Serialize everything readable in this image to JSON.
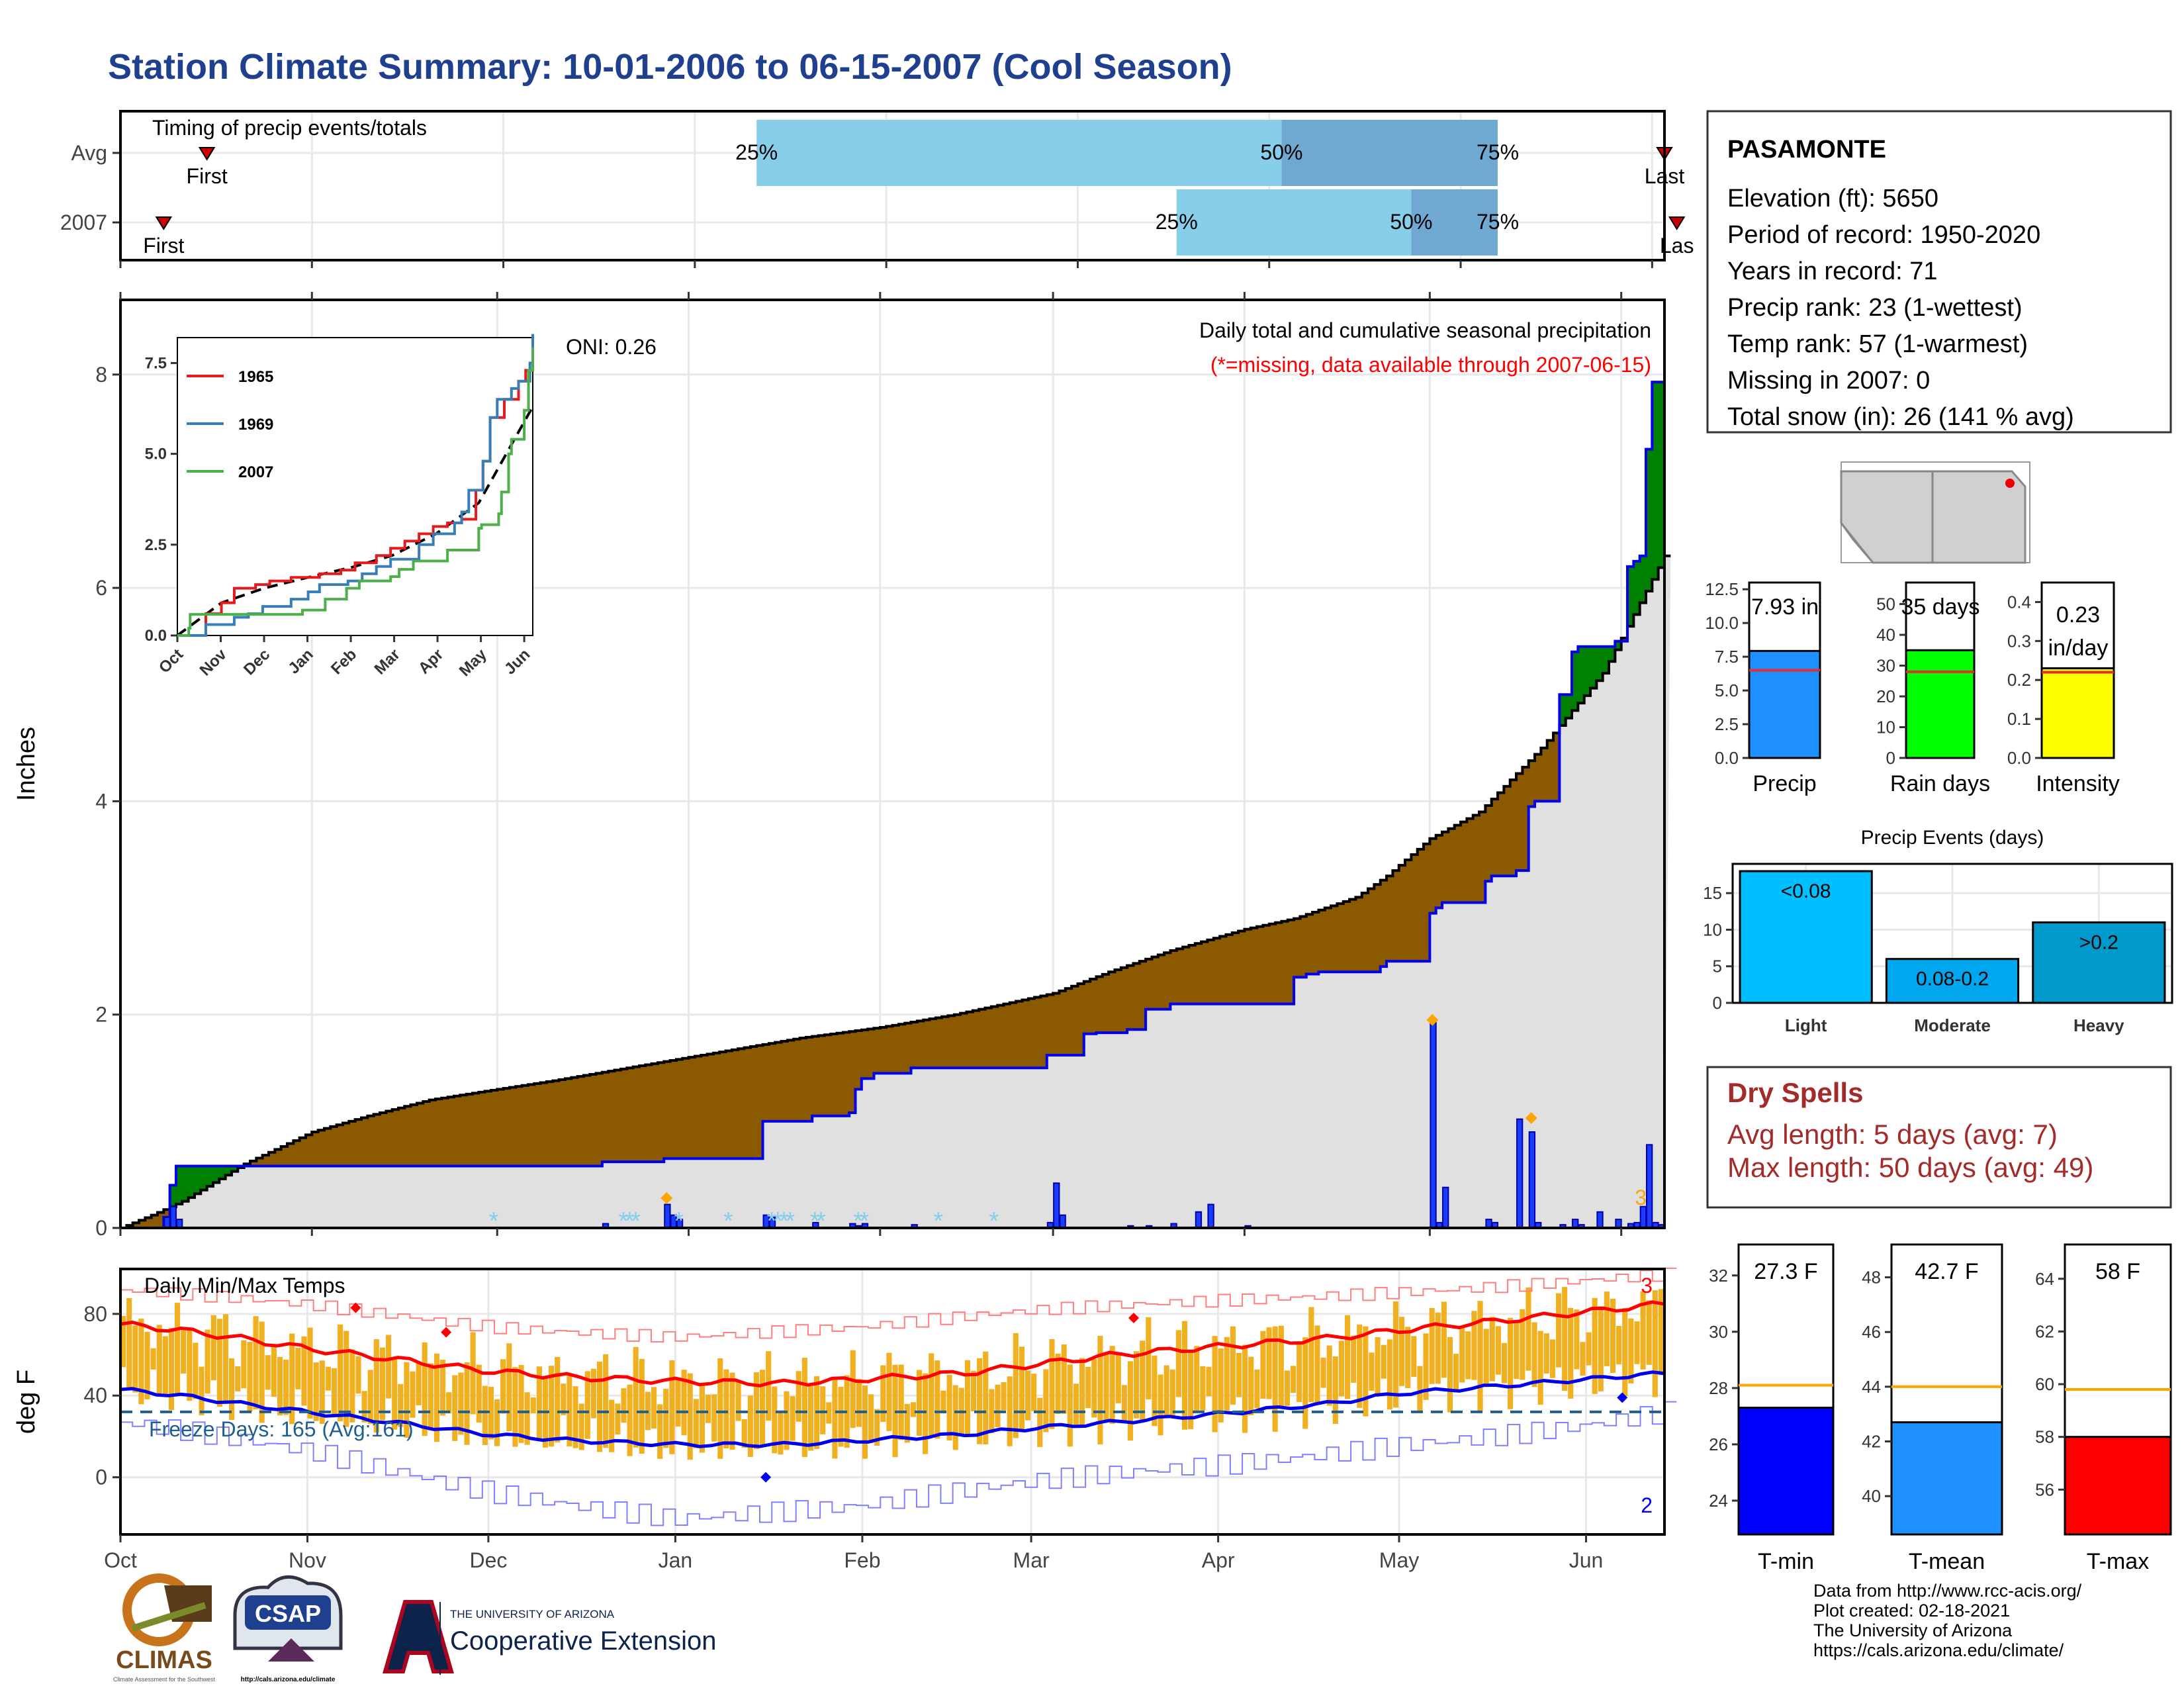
{
  "page": {
    "title": "Station Climate Summary: 10-01-2006 to 06-15-2007 (Cool Season)",
    "footer_lines": [
      "Data from http://www.rcc-acis.org/",
      "Plot created: 02-18-2021",
      "The University of Arizona",
      "https://cals.arizona.edu/climate/"
    ],
    "logos": {
      "climas": "CLIMAS",
      "climas_small": "Climate Assessment for the Southwest",
      "csap": "CSAP",
      "csap_url": "http://cals.arizona.edu/climate",
      "ua_top": "THE UNIVERSITY OF ARIZONA",
      "ua_main": "Cooperative Extension"
    },
    "colors": {
      "title": "#1f3f8f",
      "dry_spells": "#a52a2a",
      "missing_note": "#ff0000"
    }
  },
  "station": {
    "name": "PASAMONTE",
    "lines": [
      "Elevation (ft): 5650",
      "Period of record: 1950-2020",
      "Years in record: 71",
      "Precip rank: 23 (1-wettest)",
      "Temp rank: 57 (1-warmest)",
      "Missing in 2007: 0",
      "Total snow (in): 26 (141 % avg)"
    ]
  },
  "dry_spells": {
    "title": "Dry Spells",
    "lines": [
      "Avg length: 5 days (avg: 7)",
      "Max length: 50 days (avg: 49)"
    ]
  },
  "month_labels": [
    "Oct",
    "Nov",
    "Dec",
    "Jan",
    "Feb",
    "Mar",
    "Apr",
    "May",
    "Jun"
  ],
  "chart_data": [
    {
      "id": "timing",
      "type": "bar",
      "title": "Timing of precip events/totals",
      "rows": [
        {
          "name": "Avg",
          "first_label": "First",
          "last_label": "Last",
          "first_day": 14,
          "last_day": 250,
          "q25_day": 103,
          "q50_day": 188,
          "q75_day": 223,
          "q25_label": "25%",
          "q50_label": "50%",
          "q75_label": "75%"
        },
        {
          "name": "2007",
          "first_label": "First",
          "last_label": "Las",
          "first_day": 7,
          "last_day": 252,
          "q25_day": 171,
          "q50_day": 209,
          "q75_day": 223,
          "q25_label": "25%",
          "q50_label": "50%",
          "q75_label": "75%"
        }
      ],
      "colors": {
        "q25_50": "#87ceeb",
        "q50_75": "#6fa8d0",
        "marker": "#cc0000"
      }
    },
    {
      "id": "precip",
      "type": "area",
      "title": "Daily total and cumulative seasonal precipitation",
      "subtitle": "(*=missing, data available through 2007-06-15)",
      "annotation": "ONI: 0.26",
      "corner_label": "3",
      "ylabel": "Inches",
      "ylim": [
        0,
        8.7
      ],
      "yticks": [
        0,
        2,
        4,
        6,
        8
      ],
      "xlim": [
        0,
        250
      ],
      "month_starts": [
        0,
        31,
        61,
        92,
        123,
        151,
        182,
        212,
        243
      ],
      "observed_cumulative": {
        "x": [
          0,
          7,
          8,
          9,
          70,
          78,
          88,
          90,
          104,
          112,
          118,
          119,
          120,
          122,
          128,
          150,
          156,
          158,
          163,
          166,
          170,
          190,
          192,
          194,
          204,
          205,
          212,
          213,
          214,
          221,
          222,
          226,
          228,
          229,
          233,
          235,
          236,
          242,
          244,
          245,
          246,
          247,
          248,
          250
        ],
        "y": [
          0,
          0.1,
          0.4,
          0.58,
          0.58,
          0.62,
          0.65,
          0.65,
          1.0,
          1.05,
          1.08,
          1.3,
          1.4,
          1.45,
          1.5,
          1.62,
          1.82,
          1.83,
          1.86,
          2.05,
          2.1,
          2.35,
          2.38,
          2.4,
          2.45,
          2.5,
          2.95,
          3.0,
          3.05,
          3.25,
          3.3,
          3.35,
          3.95,
          4.0,
          5.0,
          5.4,
          5.45,
          5.5,
          6.2,
          6.25,
          6.3,
          7.3,
          7.93,
          7.93
        ]
      },
      "average_cumulative": {
        "x": [
          0,
          5,
          10,
          20,
          31,
          40,
          50,
          61,
          70,
          80,
          92,
          100,
          110,
          123,
          135,
          151,
          160,
          170,
          182,
          190,
          200,
          205,
          212,
          220,
          230,
          240,
          250
        ],
        "y": [
          0,
          0.12,
          0.25,
          0.6,
          0.9,
          1.05,
          1.2,
          1.3,
          1.38,
          1.48,
          1.6,
          1.68,
          1.78,
          1.88,
          2.0,
          2.2,
          2.4,
          2.6,
          2.8,
          2.9,
          3.1,
          3.3,
          3.65,
          3.9,
          4.5,
          5.2,
          6.3
        ]
      },
      "daily_bars": {
        "x": [
          7,
          8,
          9,
          78,
          88,
          89,
          90,
          104,
          105,
          112,
          118,
          119,
          120,
          128,
          150,
          151,
          152,
          163,
          166,
          170,
          174,
          176,
          182,
          212,
          213,
          214,
          221,
          222,
          226,
          228,
          229,
          233,
          235,
          236,
          239,
          242,
          244,
          245,
          246,
          247,
          248,
          249
        ],
        "y": [
          0.1,
          0.2,
          0.08,
          0.04,
          0.22,
          0.12,
          0.08,
          0.12,
          0.1,
          0.05,
          0.04,
          0.02,
          0.04,
          0.03,
          0.05,
          0.42,
          0.12,
          0.02,
          0.02,
          0.04,
          0.15,
          0.22,
          0.02,
          1.94,
          0.05,
          0.38,
          0.08,
          0.05,
          1.02,
          0.9,
          0.05,
          0.03,
          0.08,
          0.03,
          0.15,
          0.08,
          0.04,
          0.05,
          0.2,
          0.78,
          0.05,
          0.03
        ]
      },
      "record_markers": {
        "x": [
          88,
          212,
          228
        ],
        "y": [
          0.28,
          1.95,
          1.03
        ]
      },
      "snow_markers": {
        "x": [
          60,
          81,
          82,
          83,
          90,
          98,
          105,
          106,
          107,
          108,
          112,
          113,
          119,
          120,
          132,
          141
        ]
      },
      "colors": {
        "above": "#008000",
        "below": "#8b5a00",
        "line": "#0000ee",
        "avg_fill": "#e0e0e0",
        "record": "#ffa500",
        "snow": "#87ceeb"
      }
    },
    {
      "id": "inset",
      "type": "line",
      "ylim": [
        0,
        8.2
      ],
      "yticks": [
        0.0,
        2.5,
        5.0,
        7.5
      ],
      "ytick_labels": [
        "0.0",
        "2.5",
        "5.0",
        "7.5"
      ],
      "month_labels": [
        "Oct",
        "Nov",
        "Dec",
        "Jan",
        "Feb",
        "Mar",
        "Apr",
        "May",
        "Jun"
      ],
      "series": [
        {
          "name": "1965",
          "color": "#e41a1c",
          "x": [
            0,
            20,
            31,
            40,
            55,
            65,
            80,
            100,
            115,
            125,
            140,
            150,
            160,
            170,
            180,
            190,
            200,
            210,
            215,
            220,
            230,
            240,
            245,
            250
          ],
          "y": [
            0,
            0.6,
            0.9,
            1.3,
            1.4,
            1.5,
            1.6,
            1.7,
            1.8,
            2.0,
            2.2,
            2.4,
            2.6,
            2.8,
            3.0,
            3.1,
            3.2,
            4.0,
            4.8,
            6.0,
            6.5,
            7.0,
            7.3,
            8.2
          ]
        },
        {
          "name": "1969",
          "color": "#377eb8",
          "x": [
            0,
            20,
            40,
            50,
            60,
            80,
            92,
            100,
            120,
            130,
            140,
            150,
            170,
            180,
            195,
            200,
            205,
            215,
            220,
            225,
            235,
            240,
            248,
            250
          ],
          "y": [
            0,
            0.3,
            0.5,
            0.6,
            0.8,
            1.0,
            1.2,
            1.4,
            1.5,
            1.7,
            1.9,
            2.1,
            2.5,
            2.8,
            3.1,
            3.4,
            4.0,
            4.8,
            6.0,
            6.5,
            6.8,
            7.0,
            7.5,
            8.3
          ]
        },
        {
          "name": "2007",
          "color": "#4daf4a",
          "x": [
            0,
            8,
            9,
            70,
            88,
            104,
            119,
            128,
            150,
            156,
            166,
            190,
            212,
            214,
            226,
            228,
            233,
            235,
            244,
            247,
            250
          ],
          "y": [
            0,
            0.2,
            0.58,
            0.58,
            0.7,
            1.0,
            1.3,
            1.5,
            1.62,
            1.82,
            2.05,
            2.35,
            2.95,
            3.05,
            3.35,
            3.95,
            5.0,
            5.4,
            6.2,
            7.3,
            7.93
          ]
        }
      ],
      "avg": {
        "x": [
          0,
          31,
          61,
          92,
          123,
          151,
          182,
          212,
          250
        ],
        "y": [
          0,
          0.9,
          1.3,
          1.6,
          1.88,
          2.2,
          2.8,
          3.65,
          6.3
        ]
      }
    },
    {
      "id": "temps",
      "type": "line",
      "title": "Daily Min/Max Temps",
      "annotation": "Freeze Days: 165 (Avg:161)",
      "ylabel": "deg F",
      "ylim": [
        -28,
        102
      ],
      "yticks": [
        0,
        40,
        80
      ],
      "xlim": [
        0,
        256
      ],
      "month_labels": [
        "Oct",
        "Nov",
        "Dec",
        "Jan",
        "Feb",
        "Mar",
        "Apr",
        "May",
        "Jun"
      ],
      "freeze_line": 32,
      "top_count": "3",
      "bottom_count": "2",
      "normal_max": {
        "x": [
          0,
          10,
          20,
          31,
          45,
          61,
          75,
          92,
          110,
          123,
          140,
          151,
          165,
          182,
          200,
          212,
          230,
          243,
          256
        ],
        "y": [
          75,
          72,
          68,
          63,
          58,
          52,
          49,
          47,
          46,
          48,
          51,
          55,
          60,
          64,
          68,
          72,
          77,
          81,
          85
        ]
      },
      "normal_min": {
        "x": [
          0,
          10,
          20,
          31,
          45,
          61,
          75,
          92,
          110,
          123,
          140,
          151,
          165,
          182,
          200,
          212,
          230,
          243,
          256
        ],
        "y": [
          43,
          40,
          36,
          32,
          27,
          21,
          18,
          16,
          16,
          18,
          21,
          24,
          27,
          31,
          36,
          41,
          45,
          48,
          51
        ]
      },
      "record_max": {
        "x": [
          0,
          31,
          61,
          92,
          123,
          151,
          182,
          212,
          243,
          256
        ],
        "y": [
          90,
          84,
          75,
          70,
          73,
          80,
          86,
          92,
          98,
          100
        ]
      },
      "record_min": {
        "x": [
          0,
          31,
          61,
          92,
          123,
          151,
          182,
          212,
          243,
          256
        ],
        "y": [
          24,
          12,
          -5,
          -18,
          -15,
          -5,
          5,
          18,
          28,
          33
        ]
      },
      "record_high_points": {
        "x": [
          39,
          54,
          168
        ],
        "y": [
          83,
          71,
          78
        ]
      },
      "record_low_points": {
        "x": [
          107,
          249
        ],
        "y": [
          0,
          39
        ]
      },
      "colors": {
        "bars": "#f0b020",
        "max": "#ff0000",
        "min": "#0000ee",
        "record_max": "#ff7f7f",
        "record_min": "#7f7fff",
        "freeze": "#1f5f8f"
      }
    },
    {
      "id": "precip_bars",
      "type": "bar",
      "categories": [
        "Precip",
        "Rain days",
        "Intensity"
      ],
      "values": [
        7.93,
        35,
        0.23
      ],
      "averages": [
        6.5,
        28,
        0.22
      ],
      "labels": [
        "7.93 in",
        "35 days",
        "0.23",
        "in/day"
      ],
      "ylims": [
        [
          0,
          13
        ],
        [
          0,
          57
        ],
        [
          0,
          0.45
        ]
      ],
      "yticks": [
        [
          0.0,
          2.5,
          5.0,
          7.5,
          10.0,
          12.5
        ],
        [
          0,
          10,
          20,
          30,
          40,
          50
        ],
        [
          0.0,
          0.1,
          0.2,
          0.3,
          0.4
        ]
      ],
      "ytick_labels": [
        [
          "0.0",
          "2.5",
          "5.0",
          "7.5",
          "10.0",
          "12.5"
        ],
        [
          "0",
          "10",
          "20",
          "30",
          "40",
          "50"
        ],
        [
          "0.0",
          "0.1",
          "0.2",
          "0.3",
          "0.4"
        ]
      ],
      "colors": [
        "#1e90ff",
        "#00ff00",
        "#ffff00"
      ]
    },
    {
      "id": "events",
      "type": "bar",
      "title": "Precip Events (days)",
      "categories": [
        "Light",
        "Moderate",
        "Heavy"
      ],
      "values": [
        18,
        6,
        11
      ],
      "bar_labels": [
        "<0.08",
        "0.08-0.2",
        ">0.2"
      ],
      "ylim": [
        0,
        19
      ],
      "yticks": [
        0,
        5,
        10,
        15
      ],
      "colors": [
        "#00bfff",
        "#00a6ee",
        "#0099cc"
      ]
    },
    {
      "id": "temp_bars",
      "type": "bar",
      "categories": [
        "T-min",
        "T-mean",
        "T-max"
      ],
      "values": [
        27.3,
        42.7,
        58
      ],
      "averages": [
        28.1,
        44.0,
        59.8
      ],
      "labels": [
        "27.3 F",
        "42.7 F",
        "58 F"
      ],
      "ylims": [
        [
          22.8,
          33.1
        ],
        [
          38.6,
          49.2
        ],
        [
          54.3,
          65.3
        ]
      ],
      "yticks": [
        [
          24,
          26,
          28,
          30,
          32
        ],
        [
          40,
          42,
          44,
          46,
          48
        ],
        [
          56,
          58,
          60,
          62,
          64
        ]
      ],
      "colors": [
        "#0000ff",
        "#1e90ff",
        "#ff0000"
      ]
    }
  ]
}
